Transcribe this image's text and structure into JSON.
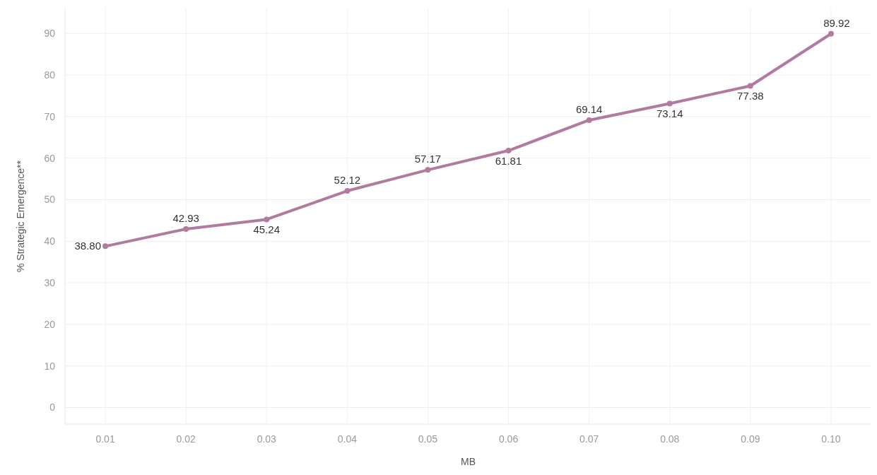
{
  "chart_data": {
    "type": "line",
    "xlabel": "MB",
    "ylabel": "% Strategic Emergence**",
    "categories": [
      "0.01",
      "0.02",
      "0.03",
      "0.04",
      "0.05",
      "0.06",
      "0.07",
      "0.08",
      "0.09",
      "0.10"
    ],
    "series": [
      {
        "color": "#b07aa1",
        "values": [
          38.8,
          42.93,
          45.24,
          52.12,
          57.17,
          61.81,
          69.14,
          73.14,
          77.38,
          89.92
        ],
        "value_labels": [
          "38.80",
          "42.93",
          "45.24",
          "52.12",
          "57.17",
          "61.81",
          "69.14",
          "73.14",
          "77.38",
          "89.92"
        ]
      }
    ],
    "ylim": [
      -4,
      96
    ],
    "yticks": [
      0,
      10,
      20,
      30,
      40,
      50,
      60,
      70,
      80,
      90
    ],
    "grid": true,
    "marker": "circle"
  }
}
